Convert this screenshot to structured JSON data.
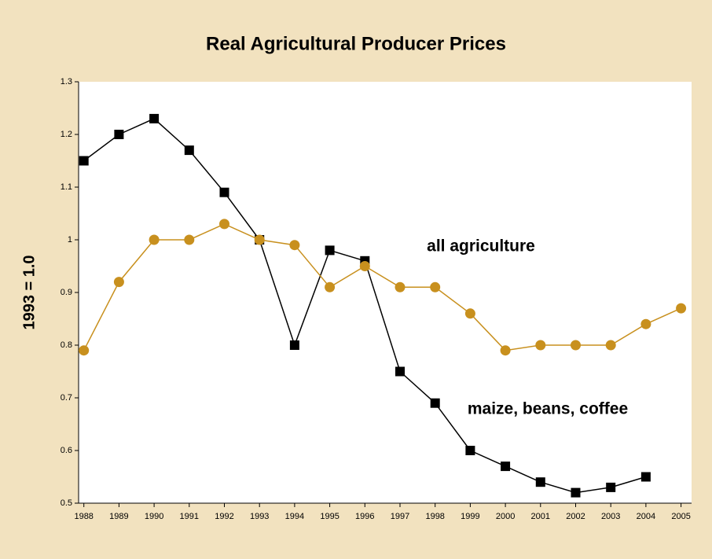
{
  "chart_data": {
    "type": "line",
    "title": "Real Agricultural Producer Prices",
    "y_label": "1993 = 1.0",
    "x": [
      1988,
      1989,
      1990,
      1991,
      1992,
      1993,
      1994,
      1995,
      1996,
      1997,
      1998,
      1999,
      2000,
      2001,
      2002,
      2003,
      2004,
      2005
    ],
    "series": [
      {
        "name": "maize, beans, coffee",
        "color": "#000000",
        "marker": "square",
        "values": [
          1.15,
          1.2,
          1.23,
          1.17,
          1.09,
          1.0,
          0.8,
          0.98,
          0.96,
          0.75,
          0.69,
          0.6,
          0.57,
          0.54,
          0.52,
          0.53,
          0.55,
          null
        ]
      },
      {
        "name": "all agriculture",
        "color": "#c8901e",
        "marker": "circle",
        "values": [
          0.79,
          0.92,
          1.0,
          1.0,
          1.03,
          1.0,
          0.99,
          0.91,
          0.95,
          0.91,
          0.91,
          0.86,
          0.79,
          0.8,
          0.8,
          0.8,
          0.84,
          0.87
        ]
      }
    ],
    "xlim": [
      1987.85,
      2005.3
    ],
    "xticks": [
      1988,
      1989,
      1990,
      1991,
      1992,
      1993,
      1994,
      1995,
      1996,
      1997,
      1998,
      1999,
      2000,
      2001,
      2002,
      2003,
      2004,
      2005
    ],
    "ylim": [
      0.5,
      1.3
    ],
    "yticks": [
      0.5,
      0.6,
      0.7,
      0.8,
      0.9,
      1,
      1.1,
      1.2,
      1.3
    ],
    "grid": false
  }
}
